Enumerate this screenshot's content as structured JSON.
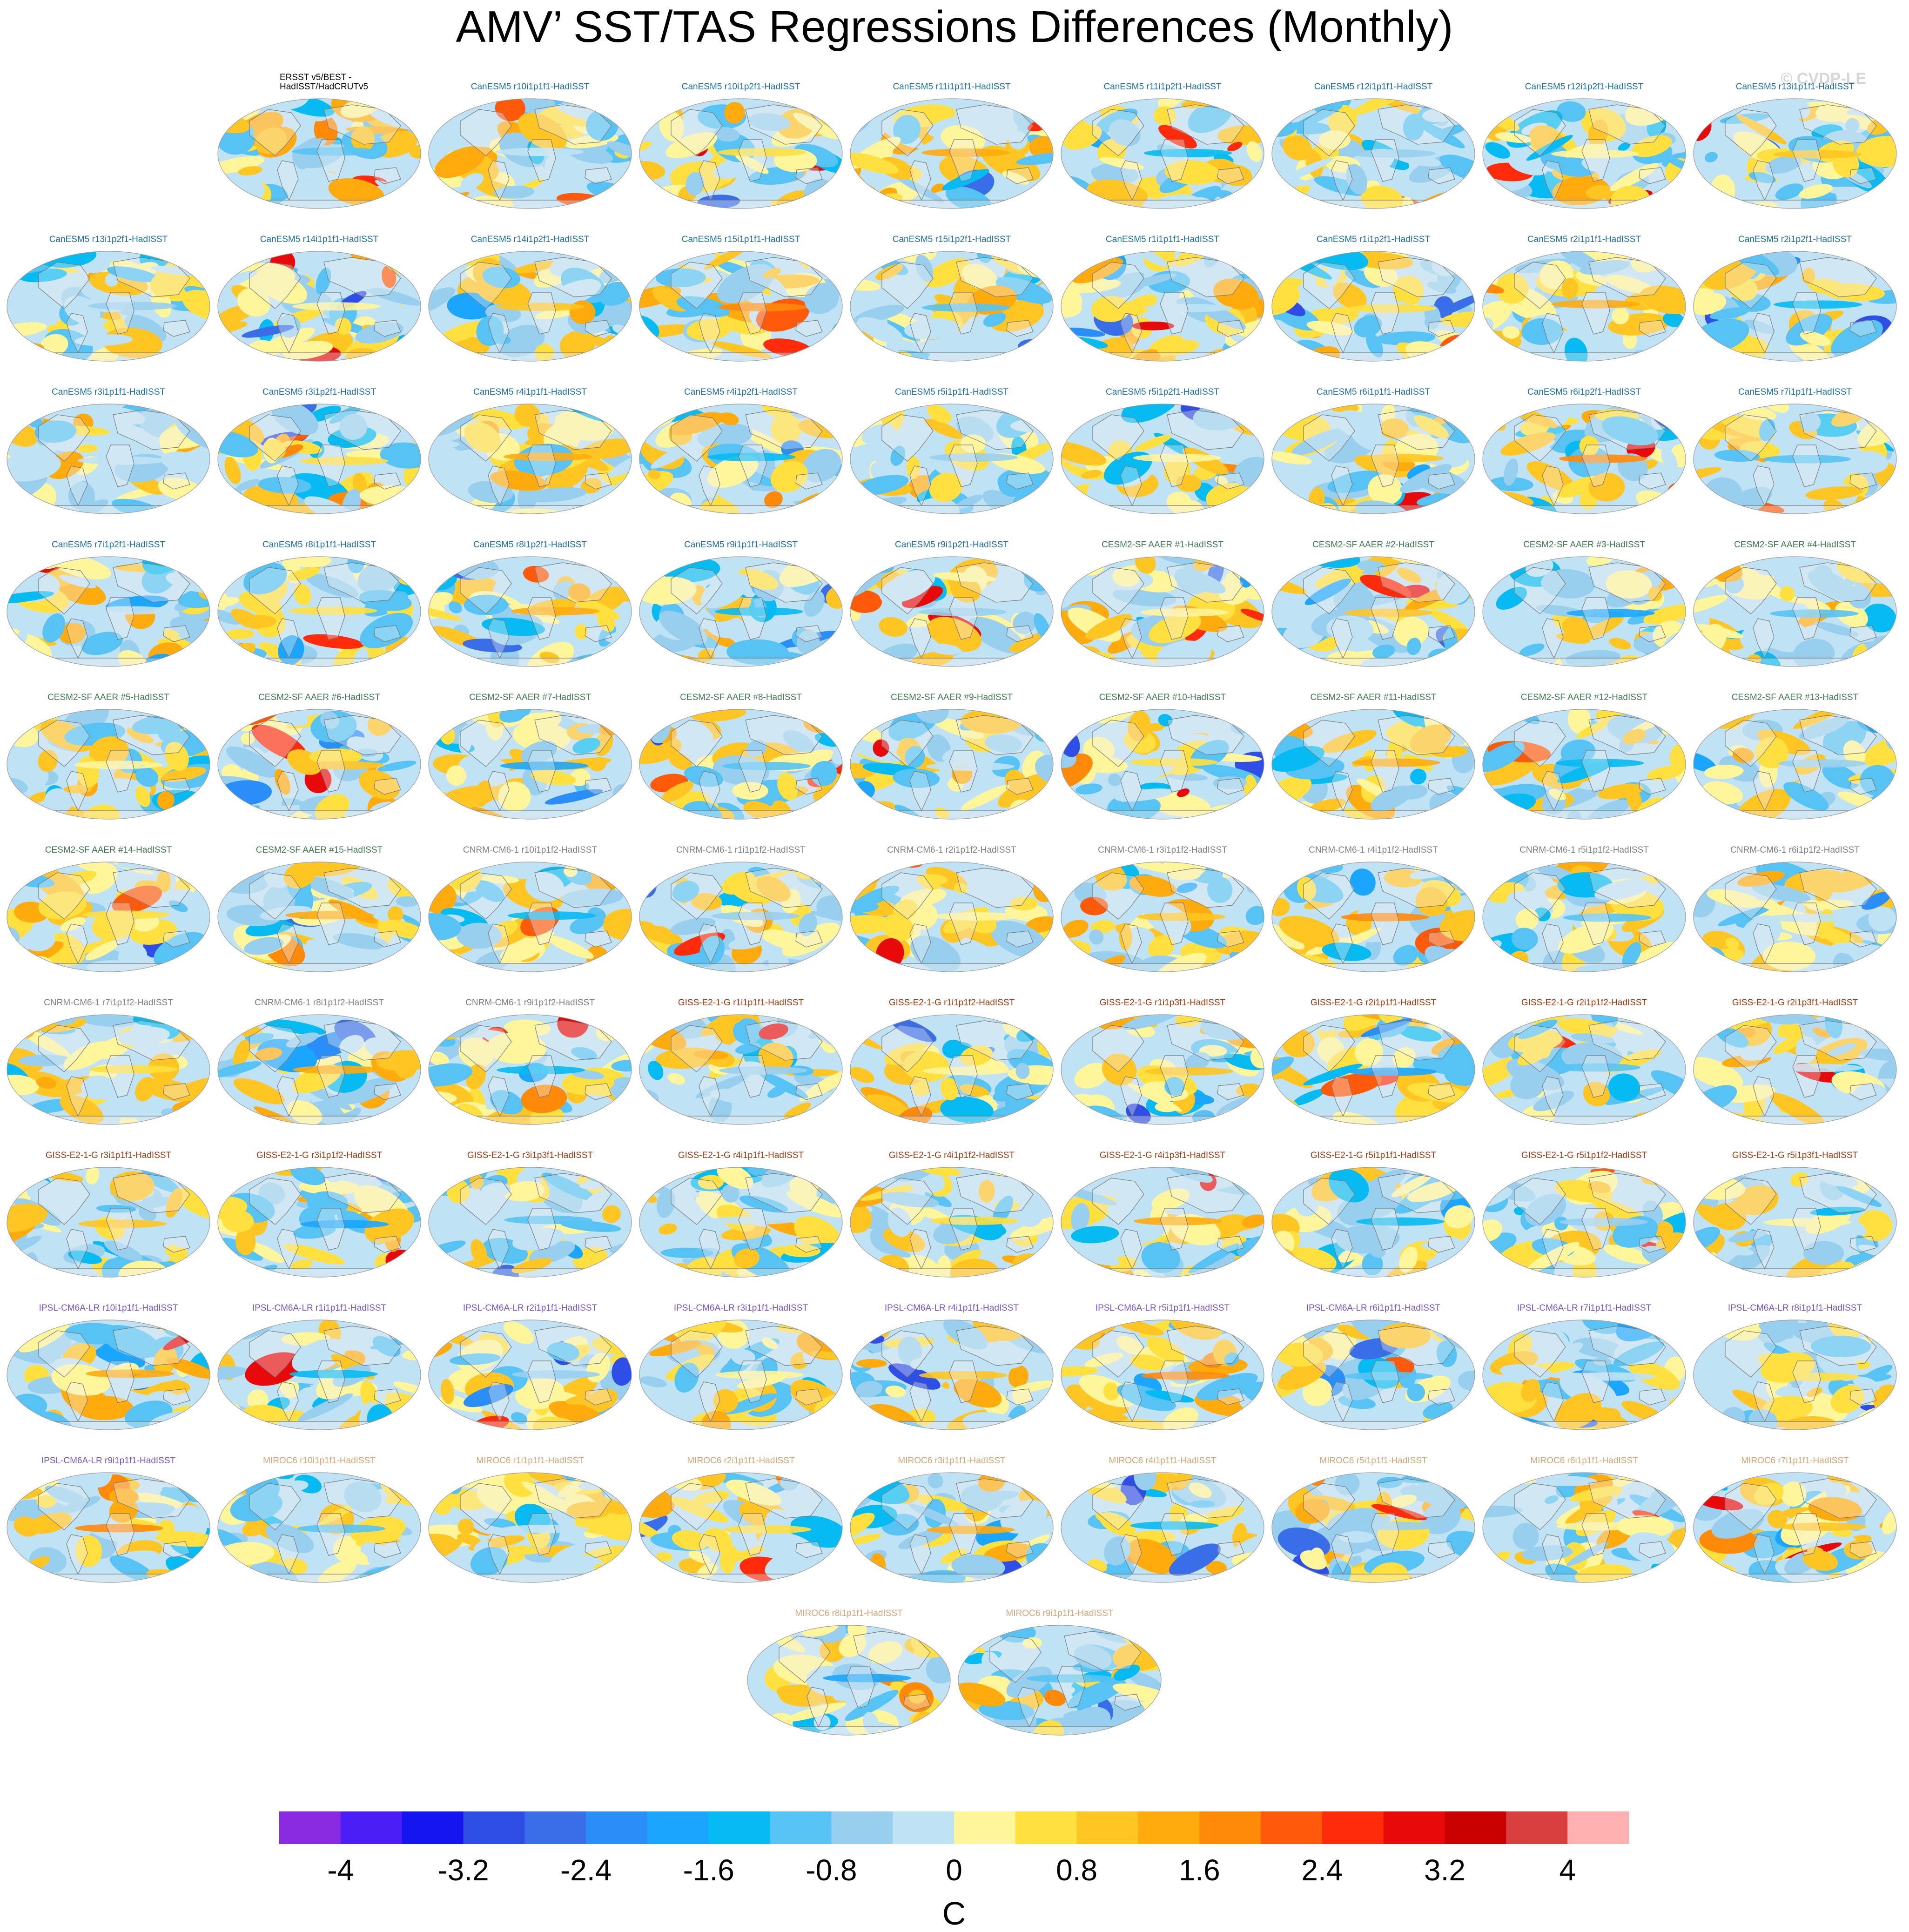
{
  "figure_title": "AMV’ SST/TAS Regressions Differences (Monthly)",
  "watermark": "© CVDP-LE",
  "model_colors": {
    "obs": "#000000",
    "CanESM5": "#1a6ea6",
    "CESM2-SF AAER": "#3c7a50",
    "CNRM-CM6-1": "#808080",
    "GISS-E2-1-G": "#a33a0f",
    "IPSL-CM6A-LR": "#7a52c9",
    "MIROC6": "#d6a574"
  },
  "chart_data": {
    "type": "heatmap",
    "title": "AMV’ SST/TAS Regressions Differences (Monthly)",
    "projection": "global map panels",
    "panel_rows": [
      [
        {
          "label": "ERSST v5/BEST -\nHadISST/HadCRUTv5",
          "model": "obs"
        },
        {
          "label": "CanESM5 r10i1p1f1-HadISST",
          "model": "CanESM5"
        },
        {
          "label": "CanESM5 r10i1p2f1-HadISST",
          "model": "CanESM5"
        },
        {
          "label": "CanESM5 r11i1p1f1-HadISST",
          "model": "CanESM5"
        },
        {
          "label": "CanESM5 r11i1p2f1-HadISST",
          "model": "CanESM5"
        },
        {
          "label": "CanESM5 r12i1p1f1-HadISST",
          "model": "CanESM5"
        },
        {
          "label": "CanESM5 r12i1p2f1-HadISST",
          "model": "CanESM5"
        },
        {
          "label": "CanESM5 r13i1p1f1-HadISST",
          "model": "CanESM5"
        }
      ],
      [
        {
          "label": "CanESM5 r13i1p2f1-HadISST",
          "model": "CanESM5"
        },
        {
          "label": "CanESM5 r14i1p1f1-HadISST",
          "model": "CanESM5"
        },
        {
          "label": "CanESM5 r14i1p2f1-HadISST",
          "model": "CanESM5"
        },
        {
          "label": "CanESM5 r15i1p1f1-HadISST",
          "model": "CanESM5"
        },
        {
          "label": "CanESM5 r15i1p2f1-HadISST",
          "model": "CanESM5"
        },
        {
          "label": "CanESM5 r1i1p1f1-HadISST",
          "model": "CanESM5"
        },
        {
          "label": "CanESM5 r1i1p2f1-HadISST",
          "model": "CanESM5"
        },
        {
          "label": "CanESM5 r2i1p1f1-HadISST",
          "model": "CanESM5"
        },
        {
          "label": "CanESM5 r2i1p2f1-HadISST",
          "model": "CanESM5"
        }
      ],
      [
        {
          "label": "CanESM5 r3i1p1f1-HadISST",
          "model": "CanESM5"
        },
        {
          "label": "CanESM5 r3i1p2f1-HadISST",
          "model": "CanESM5"
        },
        {
          "label": "CanESM5 r4i1p1f1-HadISST",
          "model": "CanESM5"
        },
        {
          "label": "CanESM5 r4i1p2f1-HadISST",
          "model": "CanESM5"
        },
        {
          "label": "CanESM5 r5i1p1f1-HadISST",
          "model": "CanESM5"
        },
        {
          "label": "CanESM5 r5i1p2f1-HadISST",
          "model": "CanESM5"
        },
        {
          "label": "CanESM5 r6i1p1f1-HadISST",
          "model": "CanESM5"
        },
        {
          "label": "CanESM5 r6i1p2f1-HadISST",
          "model": "CanESM5"
        },
        {
          "label": "CanESM5 r7i1p1f1-HadISST",
          "model": "CanESM5"
        }
      ],
      [
        {
          "label": "CanESM5 r7i1p2f1-HadISST",
          "model": "CanESM5"
        },
        {
          "label": "CanESM5 r8i1p1f1-HadISST",
          "model": "CanESM5"
        },
        {
          "label": "CanESM5 r8i1p2f1-HadISST",
          "model": "CanESM5"
        },
        {
          "label": "CanESM5 r9i1p1f1-HadISST",
          "model": "CanESM5"
        },
        {
          "label": "CanESM5 r9i1p2f1-HadISST",
          "model": "CanESM5"
        },
        {
          "label": "CESM2-SF AAER #1-HadISST",
          "model": "CESM2-SF AAER"
        },
        {
          "label": "CESM2-SF AAER #2-HadISST",
          "model": "CESM2-SF AAER"
        },
        {
          "label": "CESM2-SF AAER #3-HadISST",
          "model": "CESM2-SF AAER"
        },
        {
          "label": "CESM2-SF AAER #4-HadISST",
          "model": "CESM2-SF AAER"
        }
      ],
      [
        {
          "label": "CESM2-SF AAER #5-HadISST",
          "model": "CESM2-SF AAER"
        },
        {
          "label": "CESM2-SF AAER #6-HadISST",
          "model": "CESM2-SF AAER"
        },
        {
          "label": "CESM2-SF AAER #7-HadISST",
          "model": "CESM2-SF AAER"
        },
        {
          "label": "CESM2-SF AAER #8-HadISST",
          "model": "CESM2-SF AAER"
        },
        {
          "label": "CESM2-SF AAER #9-HadISST",
          "model": "CESM2-SF AAER"
        },
        {
          "label": "CESM2-SF AAER #10-HadISST",
          "model": "CESM2-SF AAER"
        },
        {
          "label": "CESM2-SF AAER #11-HadISST",
          "model": "CESM2-SF AAER"
        },
        {
          "label": "CESM2-SF AAER #12-HadISST",
          "model": "CESM2-SF AAER"
        },
        {
          "label": "CESM2-SF AAER #13-HadISST",
          "model": "CESM2-SF AAER"
        }
      ],
      [
        {
          "label": "CESM2-SF AAER #14-HadISST",
          "model": "CESM2-SF AAER"
        },
        {
          "label": "CESM2-SF AAER #15-HadISST",
          "model": "CESM2-SF AAER"
        },
        {
          "label": "CNRM-CM6-1 r10i1p1f2-HadISST",
          "model": "CNRM-CM6-1"
        },
        {
          "label": "CNRM-CM6-1 r1i1p1f2-HadISST",
          "model": "CNRM-CM6-1"
        },
        {
          "label": "CNRM-CM6-1 r2i1p1f2-HadISST",
          "model": "CNRM-CM6-1"
        },
        {
          "label": "CNRM-CM6-1 r3i1p1f2-HadISST",
          "model": "CNRM-CM6-1"
        },
        {
          "label": "CNRM-CM6-1 r4i1p1f2-HadISST",
          "model": "CNRM-CM6-1"
        },
        {
          "label": "CNRM-CM6-1 r5i1p1f2-HadISST",
          "model": "CNRM-CM6-1"
        },
        {
          "label": "CNRM-CM6-1 r6i1p1f2-HadISST",
          "model": "CNRM-CM6-1"
        }
      ],
      [
        {
          "label": "CNRM-CM6-1 r7i1p1f2-HadISST",
          "model": "CNRM-CM6-1"
        },
        {
          "label": "CNRM-CM6-1 r8i1p1f2-HadISST",
          "model": "CNRM-CM6-1"
        },
        {
          "label": "CNRM-CM6-1 r9i1p1f2-HadISST",
          "model": "CNRM-CM6-1"
        },
        {
          "label": "GISS-E2-1-G r1i1p1f1-HadISST",
          "model": "GISS-E2-1-G"
        },
        {
          "label": "GISS-E2-1-G r1i1p1f2-HadISST",
          "model": "GISS-E2-1-G"
        },
        {
          "label": "GISS-E2-1-G r1i1p3f1-HadISST",
          "model": "GISS-E2-1-G"
        },
        {
          "label": "GISS-E2-1-G r2i1p1f1-HadISST",
          "model": "GISS-E2-1-G"
        },
        {
          "label": "GISS-E2-1-G r2i1p1f2-HadISST",
          "model": "GISS-E2-1-G"
        },
        {
          "label": "GISS-E2-1-G r2i1p3f1-HadISST",
          "model": "GISS-E2-1-G"
        }
      ],
      [
        {
          "label": "GISS-E2-1-G r3i1p1f1-HadISST",
          "model": "GISS-E2-1-G"
        },
        {
          "label": "GISS-E2-1-G r3i1p1f2-HadISST",
          "model": "GISS-E2-1-G"
        },
        {
          "label": "GISS-E2-1-G r3i1p3f1-HadISST",
          "model": "GISS-E2-1-G"
        },
        {
          "label": "GISS-E2-1-G r4i1p1f1-HadISST",
          "model": "GISS-E2-1-G"
        },
        {
          "label": "GISS-E2-1-G r4i1p1f2-HadISST",
          "model": "GISS-E2-1-G"
        },
        {
          "label": "GISS-E2-1-G r4i1p3f1-HadISST",
          "model": "GISS-E2-1-G"
        },
        {
          "label": "GISS-E2-1-G r5i1p1f1-HadISST",
          "model": "GISS-E2-1-G"
        },
        {
          "label": "GISS-E2-1-G r5i1p1f2-HadISST",
          "model": "GISS-E2-1-G"
        },
        {
          "label": "GISS-E2-1-G r5i1p3f1-HadISST",
          "model": "GISS-E2-1-G"
        }
      ],
      [
        {
          "label": "IPSL-CM6A-LR r10i1p1f1-HadISST",
          "model": "IPSL-CM6A-LR"
        },
        {
          "label": "IPSL-CM6A-LR r1i1p1f1-HadISST",
          "model": "IPSL-CM6A-LR"
        },
        {
          "label": "IPSL-CM6A-LR r2i1p1f1-HadISST",
          "model": "IPSL-CM6A-LR"
        },
        {
          "label": "IPSL-CM6A-LR r3i1p1f1-HadISST",
          "model": "IPSL-CM6A-LR"
        },
        {
          "label": "IPSL-CM6A-LR r4i1p1f1-HadISST",
          "model": "IPSL-CM6A-LR"
        },
        {
          "label": "IPSL-CM6A-LR r5i1p1f1-HadISST",
          "model": "IPSL-CM6A-LR"
        },
        {
          "label": "IPSL-CM6A-LR r6i1p1f1-HadISST",
          "model": "IPSL-CM6A-LR"
        },
        {
          "label": "IPSL-CM6A-LR r7i1p1f1-HadISST",
          "model": "IPSL-CM6A-LR"
        },
        {
          "label": "IPSL-CM6A-LR r8i1p1f1-HadISST",
          "model": "IPSL-CM6A-LR"
        }
      ],
      [
        {
          "label": "IPSL-CM6A-LR r9i1p1f1-HadISST",
          "model": "IPSL-CM6A-LR"
        },
        {
          "label": "MIROC6 r10i1p1f1-HadISST",
          "model": "MIROC6"
        },
        {
          "label": "MIROC6 r1i1p1f1-HadISST",
          "model": "MIROC6"
        },
        {
          "label": "MIROC6 r2i1p1f1-HadISST",
          "model": "MIROC6"
        },
        {
          "label": "MIROC6 r3i1p1f1-HadISST",
          "model": "MIROC6"
        },
        {
          "label": "MIROC6 r4i1p1f1-HadISST",
          "model": "MIROC6"
        },
        {
          "label": "MIROC6 r5i1p1f1-HadISST",
          "model": "MIROC6"
        },
        {
          "label": "MIROC6 r6i1p1f1-HadISST",
          "model": "MIROC6"
        },
        {
          "label": "MIROC6 r7i1p1f1-HadISST",
          "model": "MIROC6"
        }
      ],
      [
        {
          "label": "MIROC6 r8i1p1f1-HadISST",
          "model": "MIROC6"
        },
        {
          "label": "MIROC6 r9i1p1f1-HadISST",
          "model": "MIROC6"
        }
      ]
    ],
    "colorbar": {
      "levels": [
        -4.4,
        -4,
        -3.6,
        -3.2,
        -2.8,
        -2.4,
        -2,
        -1.6,
        -1.2,
        -0.8,
        -0.4,
        0,
        0.4,
        0.8,
        1.2,
        1.6,
        2,
        2.4,
        2.8,
        3.2,
        3.6,
        4,
        4.4
      ],
      "colors": [
        "#8a2be2",
        "#4b1ef5",
        "#1515f0",
        "#2e4ee6",
        "#3a6ee8",
        "#2a8ef8",
        "#1aa6ff",
        "#06baf2",
        "#56c3f4",
        "#98cfef",
        "#bfe2f5",
        "#fff59a",
        "#ffe03f",
        "#ffc522",
        "#ffab0d",
        "#ff8a0a",
        "#ff5a0a",
        "#ff2b0a",
        "#e80a0a",
        "#c80000",
        "#d84040",
        "#ffb0b0"
      ],
      "tick_labels": [
        "-4",
        "-3.2",
        "-2.4",
        "-1.6",
        "-0.8",
        "0",
        "0.8",
        "1.6",
        "2.4",
        "3.2",
        "4"
      ],
      "tick_values": [
        -4,
        -3.2,
        -2.4,
        -1.6,
        -0.8,
        0,
        0.8,
        1.6,
        2.4,
        3.2,
        4
      ],
      "unit": "C",
      "range": [
        -4.4,
        4.4
      ]
    }
  }
}
